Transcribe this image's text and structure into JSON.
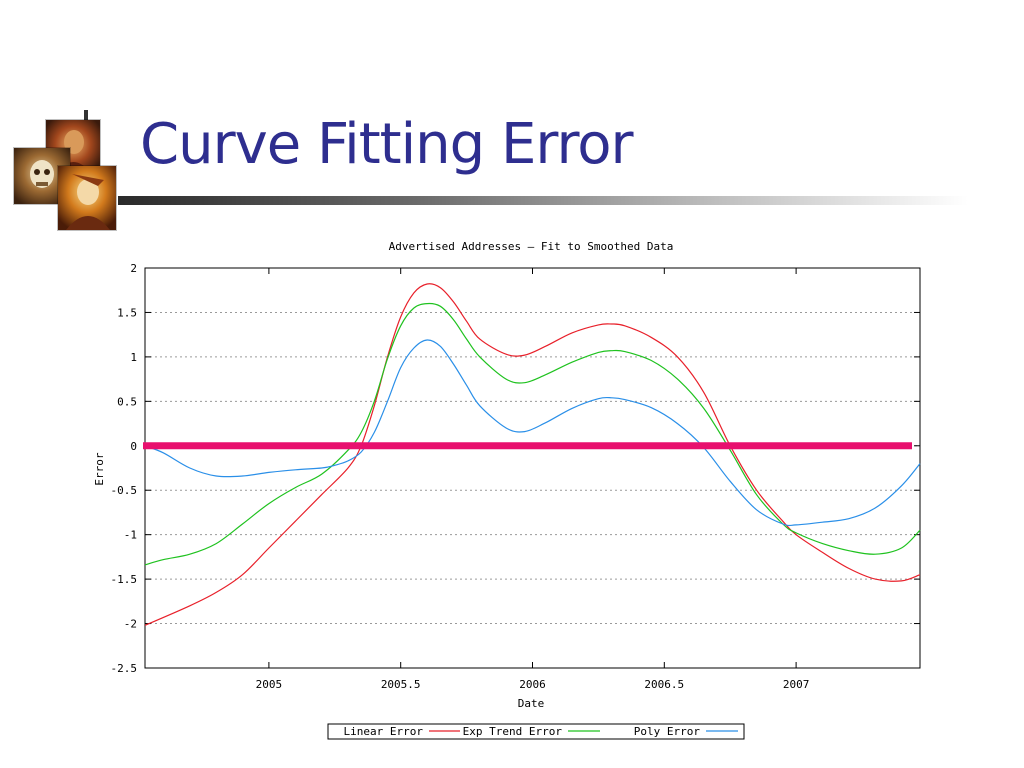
{
  "slide": {
    "title": "Curve Fitting Error"
  },
  "colors": {
    "title": "#2e2e8f",
    "linear": "#e8202a",
    "exp": "#1fc21f",
    "poly": "#2a8fe8",
    "zero_line": "#e8106e"
  },
  "decoration": {
    "images": [
      "painting-icon",
      "skull-painting-icon",
      "portrait-painting-icon"
    ]
  },
  "chart_data": {
    "type": "line",
    "title": "Advertised Addresses –  Fit to Smoothed Data",
    "xlabel": "Date",
    "ylabel": "Error",
    "xlim": [
      2004.53,
      2007.47
    ],
    "ylim": [
      -2.5,
      2
    ],
    "xticks": [
      2005,
      2005.5,
      2006,
      2006.5,
      2007
    ],
    "xtick_labels": [
      "2005",
      "2005.5",
      "2006",
      "2006.5",
      "2007"
    ],
    "yticks": [
      2,
      1.5,
      1,
      0.5,
      0,
      -0.5,
      -1,
      -1.5,
      -2,
      -2.5
    ],
    "ytick_labels": [
      "2",
      "1.5",
      "1",
      "0.5",
      "0",
      "-0.5",
      "-1",
      "-1.5",
      "-2",
      "-2.5"
    ],
    "grid": true,
    "legend_position": "bottom-center",
    "series": [
      {
        "name": "Linear Error",
        "color": "#e8202a",
        "x": [
          2004.53,
          2004.7,
          2004.8,
          2004.9,
          2005.0,
          2005.1,
          2005.2,
          2005.3,
          2005.35,
          2005.4,
          2005.45,
          2005.5,
          2005.55,
          2005.6,
          2005.65,
          2005.7,
          2005.75,
          2005.8,
          2005.9,
          2005.97,
          2006.05,
          2006.15,
          2006.25,
          2006.3,
          2006.35,
          2006.45,
          2006.55,
          2006.65,
          2006.75,
          2006.85,
          2006.95,
          2007.0,
          2007.1,
          2007.2,
          2007.3,
          2007.4,
          2007.47
        ],
        "y": [
          -2.02,
          -1.8,
          -1.65,
          -1.45,
          -1.15,
          -0.85,
          -0.55,
          -0.25,
          0.0,
          0.45,
          1.0,
          1.45,
          1.72,
          1.82,
          1.78,
          1.62,
          1.4,
          1.2,
          1.03,
          1.02,
          1.12,
          1.27,
          1.36,
          1.37,
          1.35,
          1.22,
          1.0,
          0.6,
          0.0,
          -0.5,
          -0.85,
          -1.0,
          -1.2,
          -1.38,
          -1.5,
          -1.52,
          -1.45
        ]
      },
      {
        "name": "Exp Trend Error",
        "color": "#1fc21f",
        "x": [
          2004.53,
          2004.6,
          2004.7,
          2004.8,
          2004.9,
          2005.0,
          2005.1,
          2005.2,
          2005.3,
          2005.35,
          2005.4,
          2005.45,
          2005.5,
          2005.55,
          2005.6,
          2005.65,
          2005.7,
          2005.75,
          2005.8,
          2005.9,
          2005.97,
          2006.05,
          2006.15,
          2006.25,
          2006.3,
          2006.35,
          2006.45,
          2006.55,
          2006.65,
          2006.75,
          2006.85,
          2006.95,
          2007.0,
          2007.1,
          2007.2,
          2007.3,
          2007.4,
          2007.47
        ],
        "y": [
          -1.34,
          -1.28,
          -1.22,
          -1.1,
          -0.88,
          -0.65,
          -0.47,
          -0.32,
          -0.05,
          0.15,
          0.5,
          0.98,
          1.35,
          1.55,
          1.6,
          1.57,
          1.42,
          1.2,
          1.0,
          0.75,
          0.71,
          0.8,
          0.94,
          1.05,
          1.07,
          1.06,
          0.96,
          0.75,
          0.42,
          -0.05,
          -0.55,
          -0.88,
          -0.98,
          -1.1,
          -1.18,
          -1.22,
          -1.15,
          -0.95
        ]
      },
      {
        "name": "Poly Error",
        "color": "#2a8fe8",
        "x": [
          2004.53,
          2004.6,
          2004.7,
          2004.8,
          2004.9,
          2005.0,
          2005.1,
          2005.2,
          2005.25,
          2005.3,
          2005.35,
          2005.4,
          2005.45,
          2005.5,
          2005.55,
          2005.6,
          2005.65,
          2005.7,
          2005.75,
          2005.8,
          2005.9,
          2005.97,
          2006.05,
          2006.15,
          2006.25,
          2006.3,
          2006.35,
          2006.45,
          2006.55,
          2006.65,
          2006.75,
          2006.85,
          2006.95,
          2007.0,
          2007.1,
          2007.2,
          2007.3,
          2007.4,
          2007.47
        ],
        "y": [
          0.0,
          -0.08,
          -0.25,
          -0.34,
          -0.34,
          -0.3,
          -0.27,
          -0.25,
          -0.22,
          -0.17,
          -0.07,
          0.15,
          0.5,
          0.88,
          1.1,
          1.19,
          1.12,
          0.92,
          0.68,
          0.45,
          0.2,
          0.16,
          0.26,
          0.42,
          0.53,
          0.54,
          0.52,
          0.43,
          0.25,
          -0.02,
          -0.4,
          -0.72,
          -0.88,
          -0.89,
          -0.86,
          -0.82,
          -0.7,
          -0.45,
          -0.2
        ]
      }
    ],
    "reference_lines": [
      {
        "name": "Zero Line",
        "y": 0,
        "color": "#e8106e"
      }
    ]
  }
}
